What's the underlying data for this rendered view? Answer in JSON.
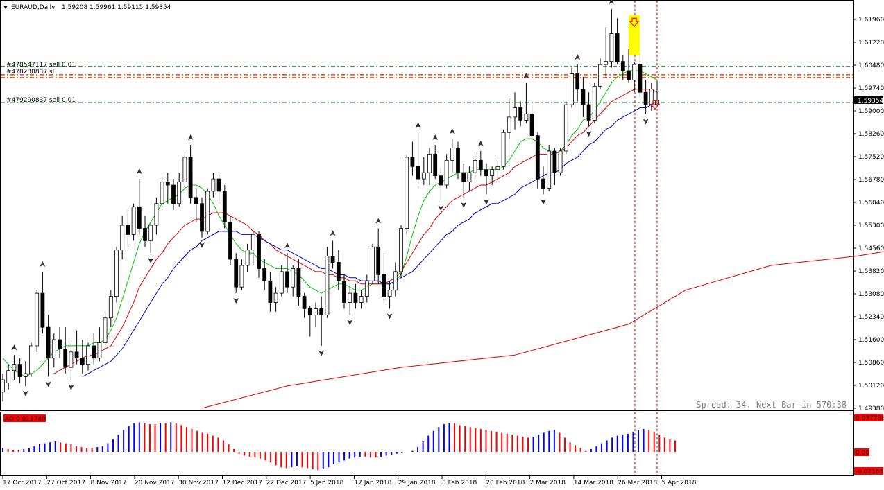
{
  "header": {
    "symbol": "EURAUD,Daily",
    "ohlc": "1.59208 1.59961 1.59115 1.59354"
  },
  "orders": [
    {
      "label": "#478547117 sell 0.01",
      "price": 1.6044,
      "color": "#008000"
    },
    {
      "label": "#478230837 sl",
      "price": 1.6017,
      "color": "#ff0000"
    },
    {
      "label": "#479290837 sell 0.01",
      "price": 1.5927,
      "color": "#008000"
    }
  ],
  "status": {
    "spread_text": "Spread: 34. Next Bar in 570:38"
  },
  "price_axis": {
    "ticks": [
      "1.61960",
      "1.61220",
      "1.60480",
      "1.59740",
      "1.59000",
      "1.58260",
      "1.57520",
      "1.56780",
      "1.56040",
      "1.55300",
      "1.54560",
      "1.53820",
      "1.53080",
      "1.52340",
      "1.51600",
      "1.50860",
      "1.50120",
      "1.49380"
    ],
    "current_price": "1.59354"
  },
  "ao_panel": {
    "label": "AO 0.011740",
    "max_label": "0.037788",
    "zero_label": "0.00",
    "min_label": "-0.02165"
  },
  "time_axis": {
    "labels": [
      "17 Oct 2017",
      "27 Oct 2017",
      "8 Nov 2017",
      "20 Nov 2017",
      "30 Nov 2017",
      "12 Dec 2017",
      "22 Dec 2017",
      "5 Jan 2018",
      "17 Jan 2018",
      "29 Jan 2018",
      "8 Feb 2018",
      "20 Feb 2018",
      "2 Mar 2018",
      "14 Mar 2018",
      "26 Mar 2018",
      "5 Apr 2018"
    ]
  },
  "colors": {
    "ma_fast": "#00c800",
    "ma_mid": "#e00000",
    "ma_slow": "#0000cc",
    "ma_long": "#dd0000",
    "ao_up": "#0000ff",
    "ao_down": "#ff0000",
    "order_line": "#008000",
    "sl_line": "#ff4500",
    "highlight": "#ffff00"
  },
  "chart_data": {
    "type": "candlestick",
    "title": "EURAUD,Daily",
    "ylim": [
      1.4938,
      1.6233
    ],
    "bars": [
      [
        1.499,
        1.505,
        1.496,
        1.503
      ],
      [
        1.502,
        1.508,
        1.5,
        1.506
      ],
      [
        1.506,
        1.511,
        1.503,
        1.508
      ],
      [
        1.508,
        1.51,
        1.502,
        1.504
      ],
      [
        1.504,
        1.509,
        1.501,
        1.505
      ],
      [
        1.505,
        1.515,
        1.504,
        1.514
      ],
      [
        1.514,
        1.532,
        1.512,
        1.531
      ],
      [
        1.531,
        1.538,
        1.518,
        1.52
      ],
      [
        1.52,
        1.524,
        1.504,
        1.51
      ],
      [
        1.51,
        1.518,
        1.507,
        1.516
      ],
      [
        1.516,
        1.52,
        1.51,
        1.513
      ],
      [
        1.513,
        1.52,
        1.505,
        1.507
      ],
      [
        1.507,
        1.515,
        1.503,
        1.512
      ],
      [
        1.512,
        1.519,
        1.508,
        1.51
      ],
      [
        1.51,
        1.516,
        1.505,
        1.508
      ],
      [
        1.508,
        1.515,
        1.506,
        1.514
      ],
      [
        1.514,
        1.518,
        1.508,
        1.51
      ],
      [
        1.51,
        1.52,
        1.509,
        1.515
      ],
      [
        1.515,
        1.525,
        1.513,
        1.523
      ],
      [
        1.523,
        1.532,
        1.52,
        1.53
      ],
      [
        1.53,
        1.546,
        1.528,
        1.545
      ],
      [
        1.545,
        1.556,
        1.542,
        1.553
      ],
      [
        1.553,
        1.558,
        1.546,
        1.55
      ],
      [
        1.55,
        1.56,
        1.548,
        1.559
      ],
      [
        1.559,
        1.568,
        1.55,
        1.552
      ],
      [
        1.552,
        1.556,
        1.546,
        1.548
      ],
      [
        1.548,
        1.554,
        1.544,
        1.553
      ],
      [
        1.553,
        1.562,
        1.55,
        1.56
      ],
      [
        1.56,
        1.569,
        1.558,
        1.567
      ],
      [
        1.567,
        1.57,
        1.56,
        1.566
      ],
      [
        1.566,
        1.568,
        1.558,
        1.56
      ],
      [
        1.56,
        1.57,
        1.559,
        1.567
      ],
      [
        1.567,
        1.576,
        1.564,
        1.575
      ],
      [
        1.575,
        1.579,
        1.56,
        1.562
      ],
      [
        1.562,
        1.565,
        1.554,
        1.56
      ],
      [
        1.56,
        1.562,
        1.549,
        1.551
      ],
      [
        1.551,
        1.565,
        1.55,
        1.564
      ],
      [
        1.564,
        1.57,
        1.562,
        1.568
      ],
      [
        1.568,
        1.57,
        1.56,
        1.564
      ],
      [
        1.564,
        1.566,
        1.552,
        1.554
      ],
      [
        1.554,
        1.556,
        1.54,
        1.542
      ],
      [
        1.542,
        1.544,
        1.531,
        1.533
      ],
      [
        1.533,
        1.542,
        1.532,
        1.54
      ],
      [
        1.54,
        1.547,
        1.538,
        1.545
      ],
      [
        1.545,
        1.551,
        1.54,
        1.55
      ],
      [
        1.55,
        1.551,
        1.536,
        1.539
      ],
      [
        1.539,
        1.542,
        1.532,
        1.535
      ],
      [
        1.535,
        1.538,
        1.525,
        1.528
      ],
      [
        1.528,
        1.533,
        1.525,
        1.531
      ],
      [
        1.531,
        1.54,
        1.53,
        1.538
      ],
      [
        1.538,
        1.544,
        1.531,
        1.533
      ],
      [
        1.533,
        1.54,
        1.53,
        1.539
      ],
      [
        1.539,
        1.542,
        1.527,
        1.53
      ],
      [
        1.53,
        1.531,
        1.523,
        1.526
      ],
      [
        1.526,
        1.527,
        1.517,
        1.524
      ],
      [
        1.524,
        1.528,
        1.52,
        1.526
      ],
      [
        1.526,
        1.53,
        1.514,
        1.524
      ],
      [
        1.524,
        1.546,
        1.523,
        1.543
      ],
      [
        1.543,
        1.548,
        1.539,
        1.541
      ],
      [
        1.541,
        1.545,
        1.532,
        1.535
      ],
      [
        1.535,
        1.537,
        1.526,
        1.528
      ],
      [
        1.528,
        1.533,
        1.524,
        1.531
      ],
      [
        1.531,
        1.534,
        1.526,
        1.528
      ],
      [
        1.528,
        1.532,
        1.526,
        1.53
      ],
      [
        1.53,
        1.537,
        1.528,
        1.535
      ],
      [
        1.535,
        1.547,
        1.534,
        1.546
      ],
      [
        1.546,
        1.552,
        1.534,
        1.537
      ],
      [
        1.537,
        1.544,
        1.528,
        1.53
      ],
      [
        1.53,
        1.535,
        1.526,
        1.532
      ],
      [
        1.532,
        1.541,
        1.53,
        1.538
      ],
      [
        1.538,
        1.553,
        1.536,
        1.552
      ],
      [
        1.552,
        1.576,
        1.55,
        1.575
      ],
      [
        1.575,
        1.58,
        1.569,
        1.572
      ],
      [
        1.572,
        1.583,
        1.565,
        1.568
      ],
      [
        1.568,
        1.575,
        1.566,
        1.57
      ],
      [
        1.57,
        1.578,
        1.566,
        1.576
      ],
      [
        1.576,
        1.579,
        1.568,
        1.569
      ],
      [
        1.569,
        1.572,
        1.561,
        1.566
      ],
      [
        1.566,
        1.576,
        1.565,
        1.574
      ],
      [
        1.574,
        1.581,
        1.57,
        1.578
      ],
      [
        1.578,
        1.58,
        1.568,
        1.57
      ],
      [
        1.57,
        1.573,
        1.562,
        1.567
      ],
      [
        1.567,
        1.572,
        1.564,
        1.57
      ],
      [
        1.57,
        1.576,
        1.568,
        1.574
      ],
      [
        1.574,
        1.577,
        1.569,
        1.571
      ],
      [
        1.571,
        1.573,
        1.563,
        1.569
      ],
      [
        1.569,
        1.572,
        1.566,
        1.571
      ],
      [
        1.571,
        1.574,
        1.568,
        1.572
      ],
      [
        1.572,
        1.584,
        1.571,
        1.583
      ],
      [
        1.583,
        1.594,
        1.581,
        1.588
      ],
      [
        1.588,
        1.596,
        1.584,
        1.591
      ],
      [
        1.591,
        1.593,
        1.585,
        1.587
      ],
      [
        1.587,
        1.599,
        1.586,
        1.589
      ],
      [
        1.589,
        1.592,
        1.58,
        1.582
      ],
      [
        1.582,
        1.583,
        1.565,
        1.568
      ],
      [
        1.568,
        1.572,
        1.563,
        1.565
      ],
      [
        1.565,
        1.579,
        1.564,
        1.577
      ],
      [
        1.577,
        1.578,
        1.566,
        1.57
      ],
      [
        1.57,
        1.578,
        1.569,
        1.577
      ],
      [
        1.577,
        1.593,
        1.576,
        1.592
      ],
      [
        1.592,
        1.604,
        1.591,
        1.602
      ],
      [
        1.602,
        1.605,
        1.593,
        1.597
      ],
      [
        1.597,
        1.601,
        1.588,
        1.592
      ],
      [
        1.592,
        1.596,
        1.585,
        1.587
      ],
      [
        1.587,
        1.599,
        1.586,
        1.598
      ],
      [
        1.598,
        1.607,
        1.597,
        1.605
      ],
      [
        1.605,
        1.617,
        1.601,
        1.606
      ],
      [
        1.606,
        1.623,
        1.604,
        1.615
      ],
      [
        1.615,
        1.62,
        1.605,
        1.606
      ],
      [
        1.606,
        1.608,
        1.6,
        1.603
      ],
      [
        1.603,
        1.61,
        1.599,
        1.6
      ],
      [
        1.6,
        1.606,
        1.596,
        1.605
      ],
      [
        1.605,
        1.608,
        1.594,
        1.596
      ],
      [
        1.596,
        1.6,
        1.589,
        1.592
      ],
      [
        1.592,
        1.599,
        1.59,
        1.597
      ],
      [
        1.592,
        1.5996,
        1.5912,
        1.5935
      ]
    ],
    "ma_fast": [
      1.51,
      1.508,
      1.506,
      1.505,
      1.504,
      1.505,
      1.506,
      1.508,
      1.51,
      1.512,
      1.513,
      1.514,
      1.514,
      1.514,
      1.514,
      1.514,
      1.515,
      1.515,
      1.516,
      1.519,
      1.523,
      1.529,
      1.535,
      1.541,
      1.547,
      1.551,
      1.554,
      1.557,
      1.56,
      1.561,
      1.562,
      1.563,
      1.565,
      1.566,
      1.566,
      1.565,
      1.563,
      1.56,
      1.556,
      1.553,
      1.55,
      1.547,
      1.545,
      1.544,
      1.544,
      1.542,
      1.541,
      1.54,
      1.539,
      1.539,
      1.539,
      1.538,
      1.537,
      1.535,
      1.533,
      1.532,
      1.531,
      1.532,
      1.533,
      1.534,
      1.534,
      1.533,
      1.532,
      1.532,
      1.533,
      1.534,
      1.534,
      1.534,
      1.534,
      1.535,
      1.537,
      1.543,
      1.55,
      1.556,
      1.561,
      1.564,
      1.566,
      1.567,
      1.568,
      1.569,
      1.57,
      1.57,
      1.57,
      1.571,
      1.571,
      1.571,
      1.571,
      1.571,
      1.572,
      1.574,
      1.577,
      1.58,
      1.581,
      1.581,
      1.58,
      1.578,
      1.577,
      1.576,
      1.577,
      1.579,
      1.582,
      1.584,
      1.587,
      1.588,
      1.59,
      1.593,
      1.596,
      1.599,
      1.601,
      1.602,
      1.603,
      1.603,
      1.603,
      1.602,
      1.601,
      1.6
    ],
    "ma_mid": [
      null,
      null,
      null,
      null,
      null,
      null,
      null,
      null,
      null,
      1.505,
      1.506,
      1.507,
      1.508,
      1.509,
      1.51,
      1.511,
      1.511,
      1.512,
      1.513,
      1.514,
      1.517,
      1.52,
      1.524,
      1.528,
      1.533,
      1.536,
      1.539,
      1.542,
      1.544,
      1.547,
      1.549,
      1.551,
      1.553,
      1.554,
      1.555,
      1.555,
      1.556,
      1.557,
      1.557,
      1.557,
      1.556,
      1.555,
      1.554,
      1.553,
      1.551,
      1.55,
      1.548,
      1.547,
      1.545,
      1.544,
      1.543,
      1.542,
      1.541,
      1.54,
      1.539,
      1.538,
      1.538,
      1.537,
      1.537,
      1.536,
      1.536,
      1.535,
      1.535,
      1.534,
      1.534,
      1.534,
      1.534,
      1.534,
      1.535,
      1.536,
      1.538,
      1.541,
      1.544,
      1.547,
      1.55,
      1.552,
      1.555,
      1.557,
      1.559,
      1.561,
      1.562,
      1.563,
      1.564,
      1.565,
      1.566,
      1.566,
      1.567,
      1.568,
      1.569,
      1.57,
      1.572,
      1.573,
      1.574,
      1.575,
      1.576,
      1.576,
      1.576,
      1.576,
      1.577,
      1.578,
      1.58,
      1.582,
      1.583,
      1.585,
      1.587,
      1.589,
      1.591,
      1.593,
      1.594,
      1.595,
      1.596,
      1.597,
      1.597,
      1.597,
      1.597,
      1.596
    ],
    "ma_slow": [
      null,
      null,
      null,
      null,
      null,
      null,
      null,
      null,
      null,
      null,
      null,
      null,
      null,
      null,
      1.504,
      1.505,
      1.506,
      1.507,
      1.508,
      1.509,
      1.511,
      1.513,
      1.516,
      1.519,
      1.522,
      1.525,
      1.528,
      1.531,
      1.534,
      1.536,
      1.539,
      1.541,
      1.543,
      1.545,
      1.546,
      1.548,
      1.549,
      1.55,
      1.551,
      1.551,
      1.551,
      1.551,
      1.55,
      1.55,
      1.55,
      1.549,
      1.548,
      1.547,
      1.546,
      1.545,
      1.545,
      1.544,
      1.543,
      1.542,
      1.541,
      1.54,
      1.539,
      1.539,
      1.538,
      1.537,
      1.537,
      1.536,
      1.536,
      1.535,
      1.535,
      1.535,
      1.535,
      1.534,
      1.534,
      1.535,
      1.536,
      1.537,
      1.538,
      1.54,
      1.542,
      1.544,
      1.546,
      1.548,
      1.55,
      1.551,
      1.553,
      1.554,
      1.555,
      1.557,
      1.558,
      1.559,
      1.56,
      1.56,
      1.561,
      1.562,
      1.563,
      1.565,
      1.566,
      1.567,
      1.568,
      1.569,
      1.57,
      1.57,
      1.571,
      1.573,
      1.574,
      1.575,
      1.577,
      1.579,
      1.58,
      1.582,
      1.584,
      1.585,
      1.587,
      1.588,
      1.589,
      1.59,
      1.591,
      1.591,
      1.592,
      1.592
    ],
    "ma_long_points": [
      [
        35,
        1.4938
      ],
      [
        50,
        1.501
      ],
      [
        70,
        1.507
      ],
      [
        90,
        1.511
      ],
      [
        100,
        1.516
      ],
      [
        110,
        1.521
      ],
      [
        120,
        1.532
      ],
      [
        135,
        1.54
      ],
      [
        150,
        1.543
      ],
      [
        160,
        1.546
      ]
    ],
    "ao": [
      0.004,
      0.003,
      0.002,
      0.002,
      0.003,
      0.004,
      0.006,
      0.008,
      0.009,
      0.01,
      0.011,
      0.01,
      0.009,
      0.008,
      0.006,
      0.005,
      0.004,
      0.004,
      0.005,
      0.006,
      0.009,
      0.013,
      0.018,
      0.023,
      0.027,
      0.03,
      0.031,
      0.03,
      0.029,
      0.029,
      0.03,
      0.03,
      0.031,
      0.03,
      0.028,
      0.026,
      0.024,
      0.022,
      0.02,
      0.019,
      0.017,
      0.015,
      0.012,
      0.008,
      0.003,
      -0.002,
      -0.004,
      -0.005,
      -0.006,
      -0.007,
      -0.009,
      -0.011,
      -0.014,
      -0.016,
      -0.017,
      -0.016,
      -0.015,
      -0.016,
      -0.017,
      -0.018,
      -0.019,
      -0.018,
      -0.016,
      -0.013,
      -0.011,
      -0.009,
      -0.007,
      -0.006,
      -0.005,
      -0.005,
      -0.006,
      -0.006,
      -0.005,
      -0.004,
      -0.003,
      -0.002,
      -0.001,
      0.0,
      0.001,
      0.005,
      0.011,
      0.017,
      0.022,
      0.026,
      0.029,
      0.03,
      0.03,
      0.028,
      0.027,
      0.026,
      0.025,
      0.024,
      0.023,
      0.022,
      0.021,
      0.02,
      0.019,
      0.018,
      0.017,
      0.016,
      0.015,
      0.016,
      0.018,
      0.02,
      0.022,
      0.023,
      0.02,
      0.015,
      0.01,
      0.007,
      0.004,
      0.001,
      0.003,
      0.006,
      0.009,
      0.012,
      0.015,
      0.017,
      0.018,
      0.019,
      0.021,
      0.023,
      0.024,
      0.023,
      0.021,
      0.018,
      0.015,
      0.013,
      0.012
    ]
  }
}
